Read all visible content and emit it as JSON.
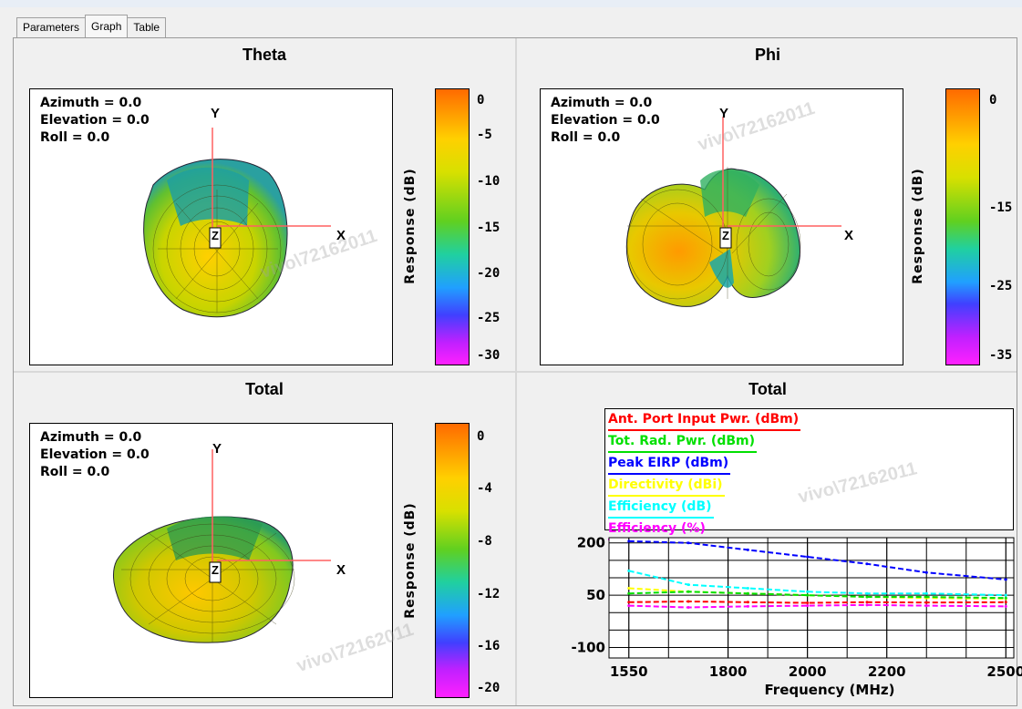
{
  "tabs": [
    {
      "label": "Parameters",
      "active": false
    },
    {
      "label": "Graph",
      "active": true
    },
    {
      "label": "Table",
      "active": false
    }
  ],
  "panels": {
    "theta": {
      "title": "Theta",
      "azimuth": "Azimuth = 0.0",
      "elevation": "Elevation = 0.0",
      "roll": "Roll = 0.0",
      "axis_x": "X",
      "axis_y": "Y",
      "axis_z": "Z",
      "colorbar_label": "Response (dB)",
      "ticks": [
        "0",
        "-5",
        "-10",
        "-15",
        "-20",
        "-25",
        "-30"
      ],
      "watermark": "vivo\\72162011"
    },
    "phi": {
      "title": "Phi",
      "azimuth": "Azimuth = 0.0",
      "elevation": "Elevation = 0.0",
      "roll": "Roll = 0.0",
      "axis_x": "X",
      "axis_y": "Y",
      "axis_z": "Z",
      "colorbar_label": "Response (dB)",
      "ticks": [
        "0",
        "-15",
        "-25",
        "-35"
      ],
      "watermark": "vivo\\72162011"
    },
    "total3d": {
      "title": "Total",
      "azimuth": "Azimuth = 0.0",
      "elevation": "Elevation = 0.0",
      "roll": "Roll = 0.0",
      "axis_x": "X",
      "axis_y": "Y",
      "axis_z": "Z",
      "colorbar_label": "Response (dB)",
      "ticks": [
        "0",
        "-4",
        "-8",
        "-12",
        "-16",
        "-20"
      ],
      "watermark": "vivo\\72162011"
    },
    "total2d": {
      "title": "Total",
      "watermark": "vivo\\72162011"
    }
  },
  "chart_data": {
    "type": "line",
    "title": "Total",
    "xlabel": "Frequency (MHz)",
    "ylabel": "",
    "xlim": [
      1500,
      2520
    ],
    "ylim": [
      -130,
      215
    ],
    "x_ticks": [
      "1550",
      "1800",
      "2000",
      "2200",
      "2500"
    ],
    "y_ticks": [
      "200",
      "50",
      "-100"
    ],
    "grid": true,
    "legend_position": "top",
    "legend": [
      {
        "name": "Ant. Port Input Pwr. (dBm)",
        "color": "#ff0000"
      },
      {
        "name": "Tot. Rad. Pwr. (dBm)",
        "color": "#00e000"
      },
      {
        "name": "Peak EIRP (dBm)",
        "color": "#0000ff"
      },
      {
        "name": "Directivity (dBi)",
        "color": "#ffff00"
      },
      {
        "name": "Efficiency (dB)",
        "color": "#00ffff"
      },
      {
        "name": "Efficiency (%)",
        "color": "#ff00ff"
      }
    ],
    "x": [
      1550,
      1700,
      1850,
      2000,
      2150,
      2300,
      2500
    ],
    "series": [
      {
        "name": "Peak EIRP (dBm)",
        "color": "#0000ff",
        "values": [
          205,
          200,
          180,
          160,
          140,
          115,
          95
        ]
      },
      {
        "name": "Directivity (dBi)",
        "color": "#ffff00",
        "values": [
          70,
          60,
          55,
          50,
          45,
          42,
          40
        ]
      },
      {
        "name": "Efficiency (dB)",
        "color": "#00ffff",
        "values": [
          120,
          80,
          70,
          60,
          55,
          55,
          50
        ]
      },
      {
        "name": "Ant. Port Input Pwr. (dBm)",
        "color": "#ff0000",
        "values": [
          30,
          32,
          30,
          28,
          30,
          29,
          30
        ]
      },
      {
        "name": "Tot. Rad. Pwr. (dBm)",
        "color": "#00e000",
        "values": [
          55,
          60,
          55,
          50,
          45,
          45,
          42
        ]
      },
      {
        "name": "Efficiency (%)",
        "color": "#ff00ff",
        "values": [
          20,
          15,
          18,
          20,
          22,
          20,
          18
        ]
      }
    ]
  }
}
